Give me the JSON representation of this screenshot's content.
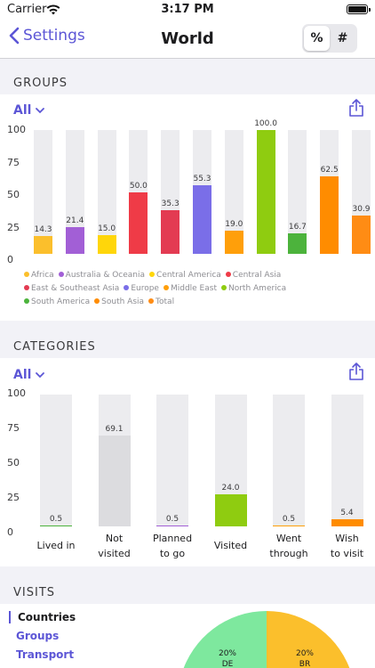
{
  "status": {
    "carrier": "Carrier",
    "time": "3:17 PM"
  },
  "nav": {
    "back_label": "Settings",
    "title": "World",
    "seg_percent": "%",
    "seg_count": "#"
  },
  "groups": {
    "header": "GROUPS",
    "filter": "All",
    "y_ticks": [
      "100",
      "75",
      "50",
      "25",
      "0"
    ],
    "legend": [
      {
        "label": "Africa",
        "color": "#fbbf2c"
      },
      {
        "label": "Australia & Oceania",
        "color": "#a25fd6"
      },
      {
        "label": "Central America",
        "color": "#ffd60a"
      },
      {
        "label": "Central Asia",
        "color": "#ef3b47"
      },
      {
        "label": "East & Southeast Asia",
        "color": "#e33b52"
      },
      {
        "label": "Europe",
        "color": "#7a6ee8"
      },
      {
        "label": "Middle East",
        "color": "#ff9f0a"
      },
      {
        "label": "North America",
        "color": "#8fcc10"
      },
      {
        "label": "South America",
        "color": "#4cb33c"
      },
      {
        "label": "South Asia",
        "color": "#ff8c00"
      },
      {
        "label": "Total",
        "color": "#ff8c14"
      }
    ]
  },
  "categories": {
    "header": "CATEGORIES",
    "filter": "All",
    "y_ticks": [
      "100",
      "75",
      "50",
      "25",
      "0"
    ],
    "labels": [
      "Lived in",
      "Not visited",
      "Planned to go",
      "Visited",
      "Went through",
      "Wish to visit"
    ],
    "label_lines": [
      [
        "Lived in"
      ],
      [
        "Not",
        "visited"
      ],
      [
        "Planned",
        "to go"
      ],
      [
        "Visited"
      ],
      [
        "Went",
        "through"
      ],
      [
        "Wish",
        "to visit"
      ]
    ],
    "colors": [
      "#4cb33c",
      "#dcdcdf",
      "#a25fd6",
      "#8fcc10",
      "#ff9f0a",
      "#ff8c00"
    ]
  },
  "visits": {
    "header": "VISITS",
    "tabs": [
      "Countries",
      "Groups",
      "Transport"
    ],
    "pie": [
      {
        "label": "20%",
        "sub": "DE",
        "color": "#7ee89e"
      },
      {
        "label": "20%",
        "sub": "BR",
        "color": "#fbbf2c"
      }
    ]
  },
  "chart_data": [
    {
      "type": "bar",
      "title": "GROUPS",
      "categories": [
        "Africa",
        "Australia & Oceania",
        "Central America",
        "Central Asia",
        "East & Southeast Asia",
        "Europe",
        "Middle East",
        "North America",
        "South America",
        "South Asia",
        "Total"
      ],
      "values": [
        14.3,
        21.4,
        15.0,
        50.0,
        35.3,
        55.3,
        19.0,
        100.0,
        16.7,
        62.5,
        30.9
      ],
      "value_labels": [
        "14.3",
        "21.4",
        "15.0",
        "50.0",
        "35.3",
        "55.3",
        "19.0",
        "100.0",
        "16.7",
        "62.5",
        "30.9"
      ],
      "ylim": [
        0,
        100
      ],
      "grid": false,
      "legend": "bottom"
    },
    {
      "type": "bar",
      "title": "CATEGORIES",
      "categories": [
        "Lived in",
        "Not visited",
        "Planned to go",
        "Visited",
        "Went through",
        "Wish to visit"
      ],
      "values": [
        0.5,
        69.1,
        0.5,
        24.0,
        0.5,
        5.4
      ],
      "value_labels": [
        "0.5",
        "69.1",
        "0.5",
        "24.0",
        "0.5",
        "5.4"
      ],
      "ylim": [
        0,
        100
      ],
      "grid": false
    }
  ]
}
